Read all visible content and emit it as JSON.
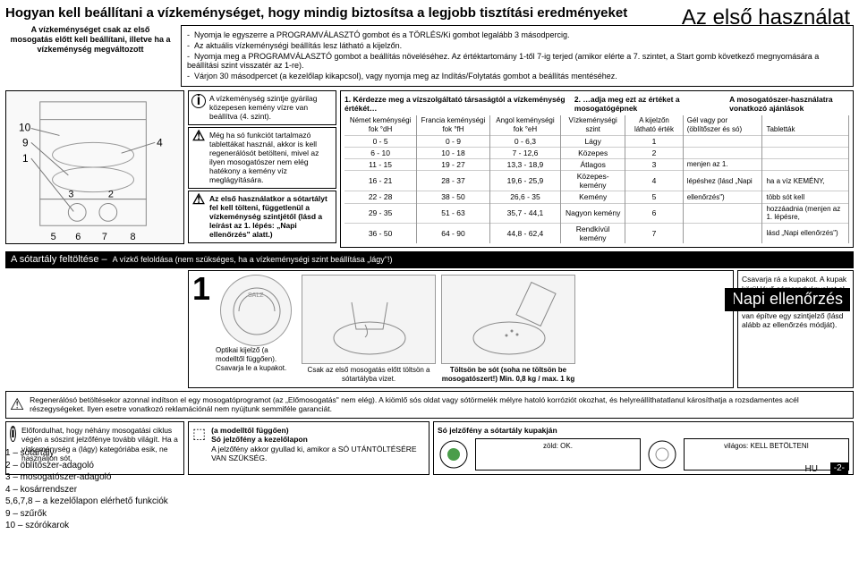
{
  "title": "Hogyan kell beállítani a vízkeménységet, hogy mindig biztosítsa a legjobb tisztítási eredményeket",
  "first_use": "Az első használat",
  "daily_check": "Napi ellenőrzés",
  "setup_note": "A vízkeménységet csak az első mosogatás előtt kell beállítani, illetve ha a vízkeménység megváltozott",
  "instructions": [
    "Nyomja le egyszerre a PROGRAMVÁLASZTÓ gombot és a TÖRLÉS/Ki gombot legalább 3 másodpercig.",
    "Az aktuális vízkeménységi beállítás lesz látható a kijelzőn.",
    "Nyomja meg a PROGRAMVÁLASZTÓ gombot a beállítás növeléséhez. Az értéktartomány 1-től 7-ig terjed (amikor elérte a 7. szintet, a Start gomb következő megnyomására a beállítási szint visszatér az 1-re).",
    "Várjon 30 másodpercet (a kezelőlap kikapcsol), vagy nyomja meg az Indítás/Folytatás gombot a beállítás mentéséhez."
  ],
  "info_i1": "A vízkeménység szintje gyárilag közepesen kemény vízre van beállítva (4. szint).",
  "info_w1": "Még ha só funkciót tartalmazó tablettákat használ, akkor is kell regenerálósót betölteni, mivel az ilyen mosogatószer nem elég hatékony a kemény víz meglágyítására.",
  "info_w2": "Az első használatkor a sótartályt fel kell tölteni, függetlenül a vízkeménység szintjétől (lásd a leírást az 1. lépés: „Napi ellenőrzés\" alatt.)",
  "q1": "1.  Kérdezze meg a vízszolgáltató társaságtól a vízkeménység értékét…",
  "q2": "2. …adja meg ezt az értéket a mosogatógépnek",
  "q3": "A mosogatószer-használatra vonatkozó ajánlások",
  "hardness": {
    "cols": [
      "Német keménységi fok °dH",
      "Francia keménységi fok °fH",
      "Angol keménységi fok °eH",
      "Vízkeménységi szint",
      "A kijelzőn látható érték"
    ],
    "rec_sub": [
      "Gél vagy por (öblítőszer és só)",
      "Tabletták"
    ],
    "rows": [
      [
        "0 - 5",
        "0 - 9",
        "0 - 6,3",
        "Lágy",
        "1",
        "",
        ""
      ],
      [
        "6 - 10",
        "10 - 18",
        "7 - 12,6",
        "Közepes",
        "2",
        "",
        ""
      ],
      [
        "11 - 15",
        "19 - 27",
        "13,3 - 18,9",
        "Átlagos",
        "3",
        "menjen az 1.",
        ""
      ],
      [
        "16 - 21",
        "28 - 37",
        "19,6 - 25,9",
        "Közepes-kemény",
        "4",
        "lépéshez (lásd „Napi",
        "ha a víz KEMÉNY,"
      ],
      [
        "22 - 28",
        "38 - 50",
        "26,6 - 35",
        "Kemény",
        "5",
        "ellenőrzés\")",
        "több sót kell"
      ],
      [
        "29 - 35",
        "51 - 63",
        "35,7 - 44,1",
        "Nagyon kemény",
        "6",
        "",
        "hozzáadnia (menjen az 1. lépésre,"
      ],
      [
        "36 - 50",
        "64 - 90",
        "44,8 - 62,4",
        "Rendkívül kemény",
        "7",
        "",
        "lásd „Napi ellenőrzés\")"
      ]
    ]
  },
  "salt_header": "A sótartály feltöltése –",
  "salt_header_light": "A vízkő feloldása (nem szükséges, ha a vízkeménységi szint beállítása „lágy\"!)",
  "step1_text": "Optikai kijelző (a modelltől függően). Csavarja le a kupakot.",
  "step1_caption1": "Csak az első mosogatás előtt töltsön a sótartályba vizet.",
  "step1_caption2": "Töltsön be sót (soha ne töltsön be mosogatószert!) Min. 0,8 kg / max. 1 kg",
  "salt_right": "Csavarja rá a kupakot. A kupak körül lévő sómaradványokat el kell távolítani. Egyes sótartályoknál a kupakba be van építve egy szintjelző (lásd alább az ellenőrzés módját).",
  "warn_text": "Regenerálósó betöltésekor azonnal indítson el egy mosogatóprogramot (az „Előmosogatás\" nem elég). A kiömlő sós oldat vagy sótörmelék mélyre hatoló korróziót okozhat, és helyreállíthatatlanul károsíthatja a rozsdamentes acél részegységeket. Ilyen esetre vonatkozó reklamációnál nem nyújtunk semmiféle garanciát.",
  "bottom_i": "Előfordulhat, hogy néhány mosogatási ciklus végén a sószint jelzőfénye tovább világít. Ha a vízkeménység a (lágy) kategóriába esik, ne használjon sót.",
  "bottom_b2_title": "(a modelltől függően)\nSó jelzőfény a kezelőlapon",
  "bottom_b2_text": "A jelzőfény akkor gyullad ki, amikor a SÓ UTÁNTÖLTÉSÉRE VAN SZÜKSÉG.",
  "bottom_b3_title": "Só jelzőfény a sótartály kupakján",
  "led_green": "zöld: OK.",
  "led_clear": "világos: KELL BETÖLTENI",
  "legend": {
    "l1": "1 – sótartály",
    "l2": "2 – öblítőszer-adagoló",
    "l3": "3 – mosogatószer-adagoló",
    "l4": "4 – kosárrendszer",
    "l5": "5,6,7,8 – a kezelőlapon elérhető funkciók",
    "l9": "9 – szűrők",
    "l10": "10 – szórókarok"
  },
  "page_pre": "HU",
  "page_num": "-2-"
}
